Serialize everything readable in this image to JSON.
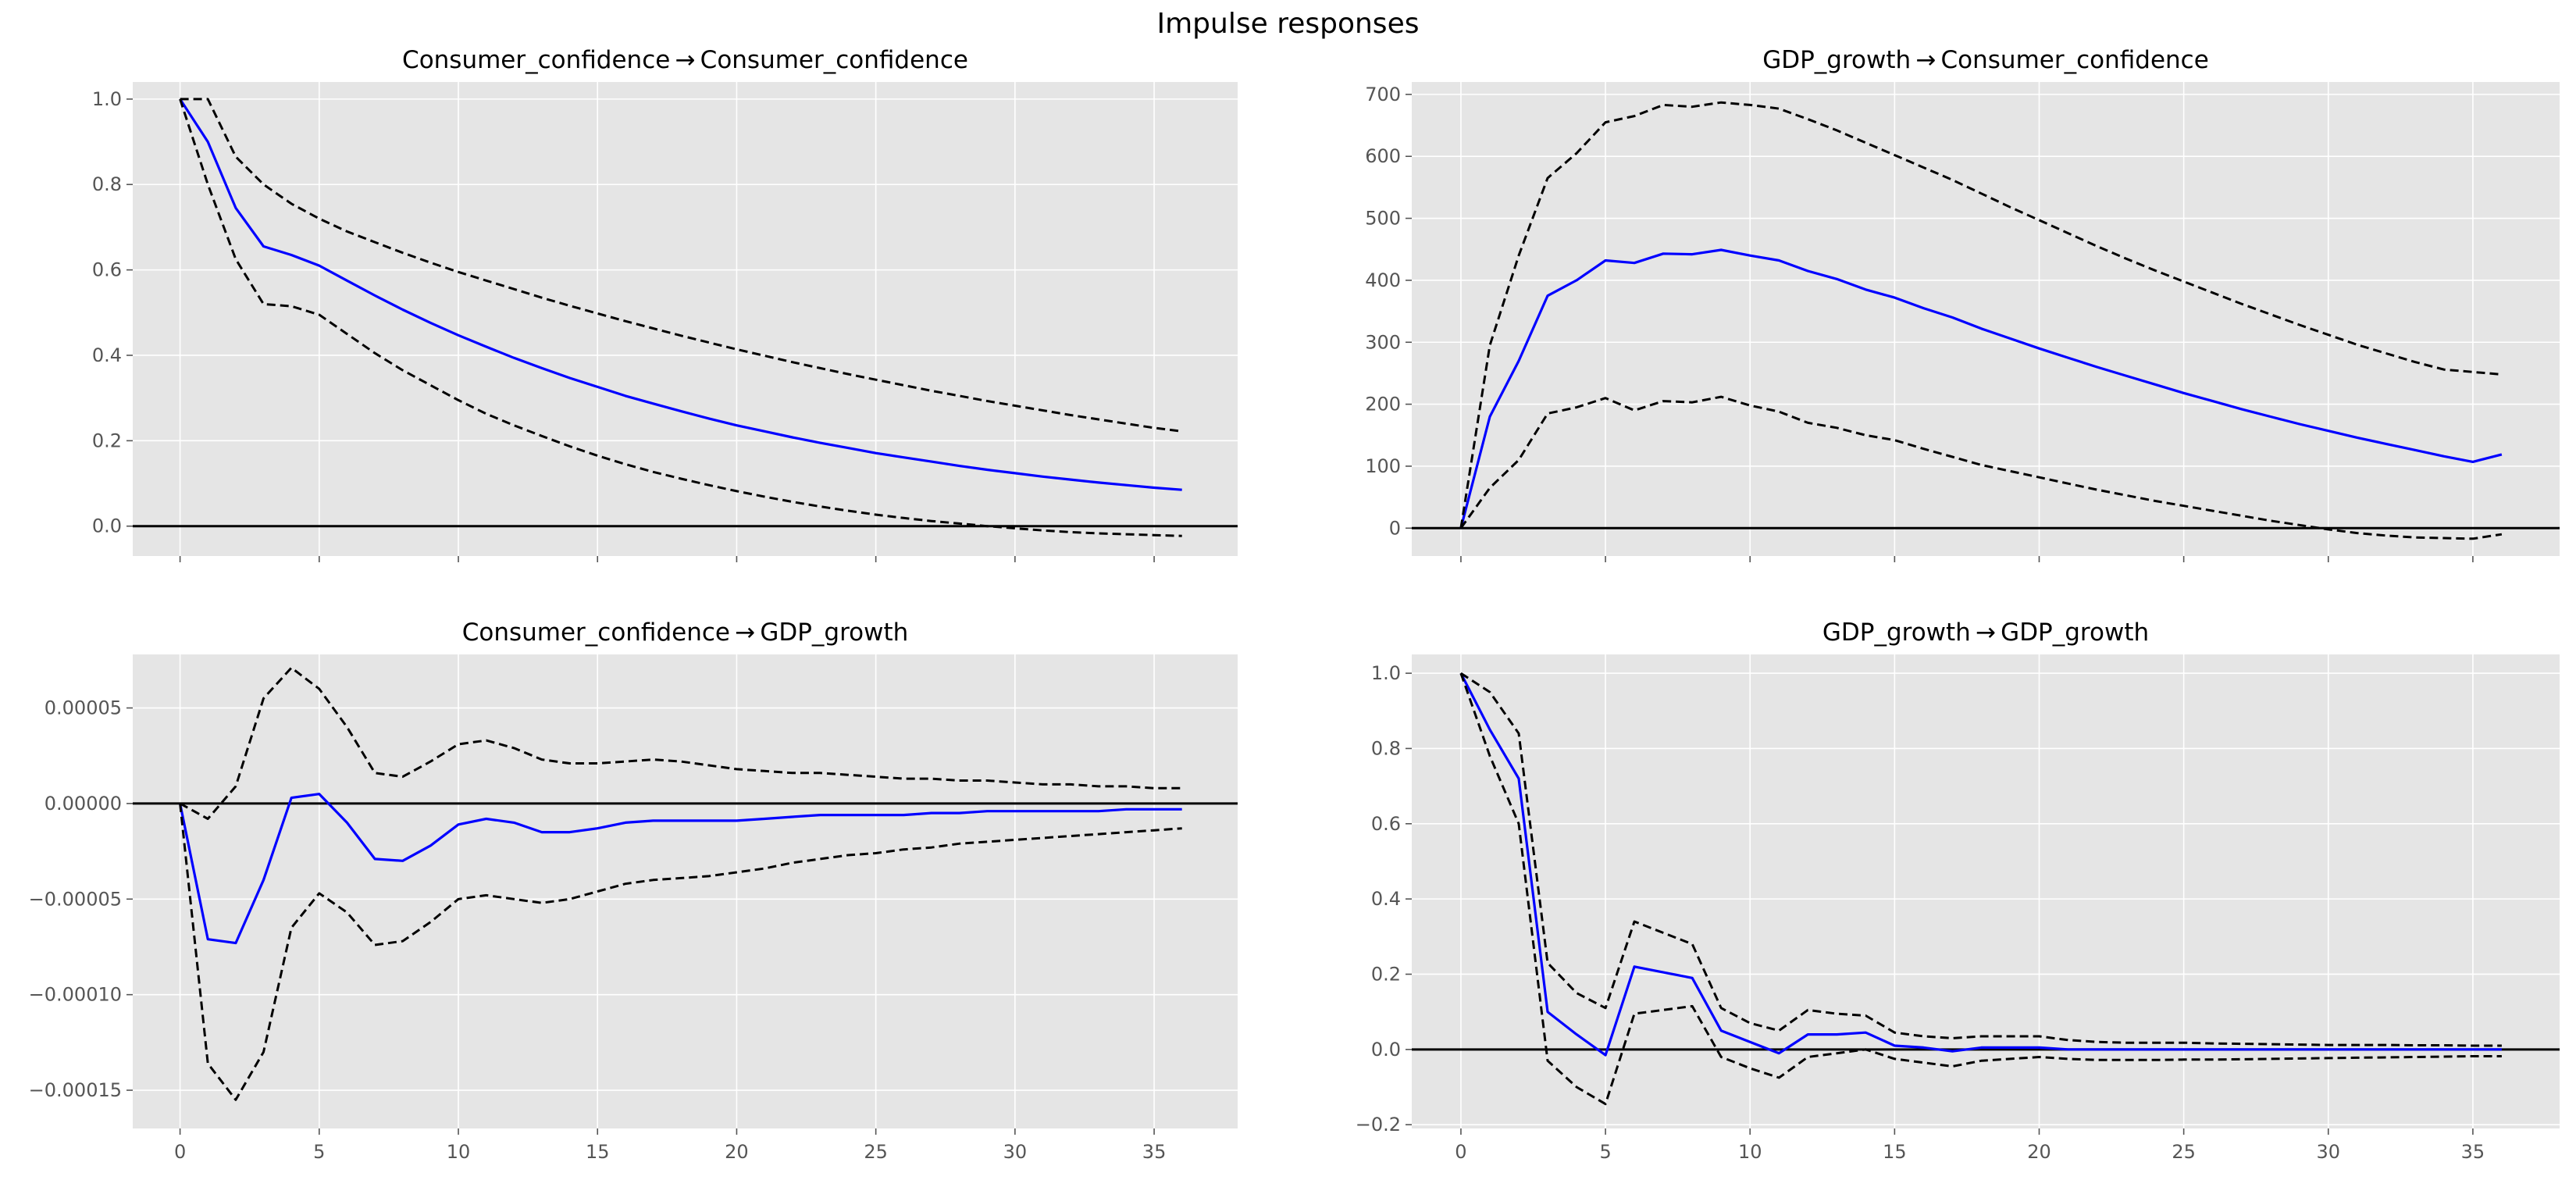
{
  "figure": {
    "suptitle": "Impulse responses"
  },
  "colors": {
    "panel_bg": "#e5e5e5",
    "grid": "#ffffff",
    "response_line": "#0000ff",
    "band_line": "#000000",
    "zero_line": "#000000",
    "tick_text": "#555555",
    "title_text": "#000000"
  },
  "chart_data": [
    {
      "type": "line",
      "title": "Consumer_confidence → Consumer_confidence",
      "x": [
        0,
        1,
        2,
        3,
        4,
        5,
        6,
        7,
        8,
        9,
        10,
        11,
        12,
        13,
        14,
        15,
        16,
        17,
        18,
        19,
        20,
        21,
        22,
        23,
        24,
        25,
        26,
        27,
        28,
        29,
        30,
        31,
        32,
        33,
        34,
        35,
        36
      ],
      "ylim": [
        -0.07,
        1.04
      ],
      "yticks": [
        0.0,
        0.2,
        0.4,
        0.6,
        0.8,
        1.0
      ],
      "ytick_labels": [
        "0.0",
        "0.2",
        "0.4",
        "0.6",
        "0.8",
        "1.0"
      ],
      "xlim": [
        -1.7,
        38
      ],
      "xticks": [
        0,
        5,
        10,
        15,
        20,
        25,
        30,
        35
      ],
      "xtick_labels": [],
      "series": [
        {
          "role": "response",
          "values": [
            1.0,
            0.9,
            0.745,
            0.655,
            0.635,
            0.61,
            0.575,
            0.54,
            0.507,
            0.476,
            0.447,
            0.42,
            0.394,
            0.37,
            0.347,
            0.326,
            0.305,
            0.287,
            0.269,
            0.252,
            0.236,
            0.222,
            0.208,
            0.195,
            0.183,
            0.171,
            0.161,
            0.151,
            0.141,
            0.132,
            0.124,
            0.116,
            0.109,
            0.102,
            0.096,
            0.09,
            0.085
          ]
        },
        {
          "role": "upper_band",
          "values": [
            1.0,
            1.0,
            0.865,
            0.8,
            0.755,
            0.72,
            0.69,
            0.665,
            0.64,
            0.617,
            0.595,
            0.575,
            0.555,
            0.535,
            0.516,
            0.498,
            0.48,
            0.463,
            0.446,
            0.43,
            0.414,
            0.399,
            0.384,
            0.37,
            0.356,
            0.343,
            0.33,
            0.317,
            0.305,
            0.293,
            0.282,
            0.271,
            0.26,
            0.25,
            0.24,
            0.23,
            0.222
          ]
        },
        {
          "role": "lower_band",
          "values": [
            1.0,
            0.8,
            0.625,
            0.52,
            0.515,
            0.495,
            0.45,
            0.405,
            0.365,
            0.33,
            0.295,
            0.263,
            0.236,
            0.211,
            0.187,
            0.165,
            0.145,
            0.127,
            0.111,
            0.096,
            0.082,
            0.069,
            0.057,
            0.046,
            0.036,
            0.027,
            0.019,
            0.012,
            0.006,
            0.0,
            -0.005,
            -0.01,
            -0.014,
            -0.017,
            -0.019,
            -0.021,
            -0.023
          ]
        }
      ]
    },
    {
      "type": "line",
      "title": "GDP_growth → Consumer_confidence",
      "x": [
        0,
        1,
        2,
        3,
        4,
        5,
        6,
        7,
        8,
        9,
        10,
        11,
        12,
        13,
        14,
        15,
        16,
        17,
        18,
        19,
        20,
        21,
        22,
        23,
        24,
        25,
        26,
        27,
        28,
        29,
        30,
        31,
        32,
        33,
        34,
        35,
        36
      ],
      "ylim": [
        -45,
        720
      ],
      "yticks": [
        0,
        100,
        200,
        300,
        400,
        500,
        600,
        700
      ],
      "ytick_labels": [
        "0",
        "100",
        "200",
        "300",
        "400",
        "500",
        "600",
        "700"
      ],
      "xlim": [
        -1.7,
        38
      ],
      "xticks": [
        0,
        5,
        10,
        15,
        20,
        25,
        30,
        35
      ],
      "xtick_labels": [],
      "series": [
        {
          "role": "response",
          "values": [
            0,
            180,
            270,
            375,
            400,
            432,
            428,
            443,
            442,
            449,
            440,
            432,
            415,
            402,
            385,
            372,
            355,
            340,
            322,
            306,
            290,
            275,
            260,
            246,
            232,
            218,
            205,
            192,
            180,
            168,
            157,
            146,
            136,
            126,
            116,
            107,
            119
          ]
        },
        {
          "role": "upper_band",
          "values": [
            0,
            295,
            440,
            565,
            605,
            655,
            665,
            683,
            680,
            687,
            683,
            677,
            660,
            642,
            622,
            602,
            582,
            562,
            540,
            518,
            497,
            476,
            455,
            435,
            416,
            398,
            380,
            362,
            345,
            328,
            312,
            296,
            282,
            268,
            256,
            252,
            248
          ]
        },
        {
          "role": "lower_band",
          "values": [
            0,
            65,
            110,
            185,
            195,
            210,
            190,
            205,
            203,
            212,
            198,
            188,
            170,
            162,
            150,
            142,
            128,
            115,
            102,
            92,
            82,
            72,
            62,
            53,
            44,
            36,
            28,
            20,
            12,
            5,
            -2,
            -8,
            -12,
            -15,
            -16,
            -17,
            -10
          ]
        }
      ]
    },
    {
      "type": "line",
      "title": "Consumer_confidence → GDP_growth",
      "x": [
        0,
        1,
        2,
        3,
        4,
        5,
        6,
        7,
        8,
        9,
        10,
        11,
        12,
        13,
        14,
        15,
        16,
        17,
        18,
        19,
        20,
        21,
        22,
        23,
        24,
        25,
        26,
        27,
        28,
        29,
        30,
        31,
        32,
        33,
        34,
        35,
        36
      ],
      "ylim": [
        -0.00017,
        7.8e-05
      ],
      "yticks": [
        -0.00015,
        -0.0001,
        -5e-05,
        0.0,
        5e-05
      ],
      "ytick_labels": [
        "−0.00015",
        "−0.00010",
        "−0.00005",
        "0.00000",
        "0.00005"
      ],
      "xlim": [
        -1.7,
        38
      ],
      "xticks": [
        0,
        5,
        10,
        15,
        20,
        25,
        30,
        35
      ],
      "xtick_labels": [
        "0",
        "5",
        "10",
        "15",
        "20",
        "25",
        "30",
        "35"
      ],
      "series": [
        {
          "role": "response",
          "values": [
            0,
            -7.1e-05,
            -7.3e-05,
            -4e-05,
            3e-06,
            5e-06,
            -1e-05,
            -2.9e-05,
            -3e-05,
            -2.2e-05,
            -1.1e-05,
            -8e-06,
            -1e-05,
            -1.5e-05,
            -1.5e-05,
            -1.3e-05,
            -1e-05,
            -9e-06,
            -9e-06,
            -9e-06,
            -9e-06,
            -8e-06,
            -7e-06,
            -6e-06,
            -6e-06,
            -6e-06,
            -6e-06,
            -5e-06,
            -5e-06,
            -4e-06,
            -4e-06,
            -4e-06,
            -4e-06,
            -4e-06,
            -3e-06,
            -3e-06,
            -3e-06
          ]
        },
        {
          "role": "upper_band",
          "values": [
            0,
            -8e-06,
            9e-06,
            5.5e-05,
            7.1e-05,
            6e-05,
            4e-05,
            1.6e-05,
            1.4e-05,
            2.2e-05,
            3.1e-05,
            3.3e-05,
            2.9e-05,
            2.3e-05,
            2.1e-05,
            2.1e-05,
            2.2e-05,
            2.3e-05,
            2.2e-05,
            2e-05,
            1.8e-05,
            1.7e-05,
            1.6e-05,
            1.6e-05,
            1.5e-05,
            1.4e-05,
            1.3e-05,
            1.3e-05,
            1.2e-05,
            1.2e-05,
            1.1e-05,
            1e-05,
            1e-05,
            9e-06,
            9e-06,
            8e-06,
            8e-06
          ]
        },
        {
          "role": "lower_band",
          "values": [
            0,
            -0.000136,
            -0.000155,
            -0.00013,
            -6.5e-05,
            -4.7e-05,
            -5.7e-05,
            -7.4e-05,
            -7.2e-05,
            -6.2e-05,
            -5e-05,
            -4.8e-05,
            -5e-05,
            -5.2e-05,
            -5e-05,
            -4.6e-05,
            -4.2e-05,
            -4e-05,
            -3.9e-05,
            -3.8e-05,
            -3.6e-05,
            -3.4e-05,
            -3.1e-05,
            -2.9e-05,
            -2.7e-05,
            -2.6e-05,
            -2.4e-05,
            -2.3e-05,
            -2.1e-05,
            -2e-05,
            -1.9e-05,
            -1.8e-05,
            -1.7e-05,
            -1.6e-05,
            -1.5e-05,
            -1.4e-05,
            -1.3e-05
          ]
        }
      ]
    },
    {
      "type": "line",
      "title": "GDP_growth → GDP_growth",
      "x": [
        0,
        1,
        2,
        3,
        4,
        5,
        6,
        7,
        8,
        9,
        10,
        11,
        12,
        13,
        14,
        15,
        16,
        17,
        18,
        19,
        20,
        21,
        22,
        23,
        24,
        25,
        26,
        27,
        28,
        29,
        30,
        31,
        32,
        33,
        34,
        35,
        36
      ],
      "ylim": [
        -0.21,
        1.05
      ],
      "yticks": [
        -0.2,
        0.0,
        0.2,
        0.4,
        0.6,
        0.8,
        1.0
      ],
      "ytick_labels": [
        "−0.2",
        "0.0",
        "0.2",
        "0.4",
        "0.6",
        "0.8",
        "1.0"
      ],
      "xlim": [
        -1.7,
        38
      ],
      "xticks": [
        0,
        5,
        10,
        15,
        20,
        25,
        30,
        35
      ],
      "xtick_labels": [
        "0",
        "5",
        "10",
        "15",
        "20",
        "25",
        "30",
        "35"
      ],
      "series": [
        {
          "role": "response",
          "values": [
            1.0,
            0.85,
            0.72,
            0.1,
            0.04,
            -0.015,
            0.22,
            0.205,
            0.19,
            0.05,
            0.02,
            -0.01,
            0.04,
            0.04,
            0.045,
            0.01,
            0.005,
            -0.005,
            0.005,
            0.005,
            0.005,
            0.0,
            0.0,
            0.0,
            0.0,
            0.0,
            0.0,
            0.0,
            0.0,
            0.0,
            0.0,
            0.0,
            0.0,
            0.0,
            0.0,
            0.0,
            0.0
          ]
        },
        {
          "role": "upper_band",
          "values": [
            1.0,
            0.95,
            0.84,
            0.23,
            0.15,
            0.11,
            0.34,
            0.31,
            0.28,
            0.11,
            0.07,
            0.05,
            0.105,
            0.095,
            0.09,
            0.045,
            0.035,
            0.03,
            0.035,
            0.035,
            0.035,
            0.025,
            0.02,
            0.018,
            0.018,
            0.018,
            0.016,
            0.015,
            0.014,
            0.013,
            0.012,
            0.012,
            0.012,
            0.011,
            0.011,
            0.01,
            0.01
          ]
        },
        {
          "role": "lower_band",
          "values": [
            1.0,
            0.78,
            0.6,
            -0.03,
            -0.1,
            -0.145,
            0.095,
            0.105,
            0.115,
            -0.02,
            -0.05,
            -0.075,
            -0.02,
            -0.01,
            0.0,
            -0.025,
            -0.035,
            -0.045,
            -0.03,
            -0.025,
            -0.02,
            -0.025,
            -0.028,
            -0.028,
            -0.028,
            -0.027,
            -0.027,
            -0.026,
            -0.025,
            -0.024,
            -0.023,
            -0.022,
            -0.021,
            -0.02,
            -0.019,
            -0.018,
            -0.018
          ]
        }
      ]
    }
  ]
}
